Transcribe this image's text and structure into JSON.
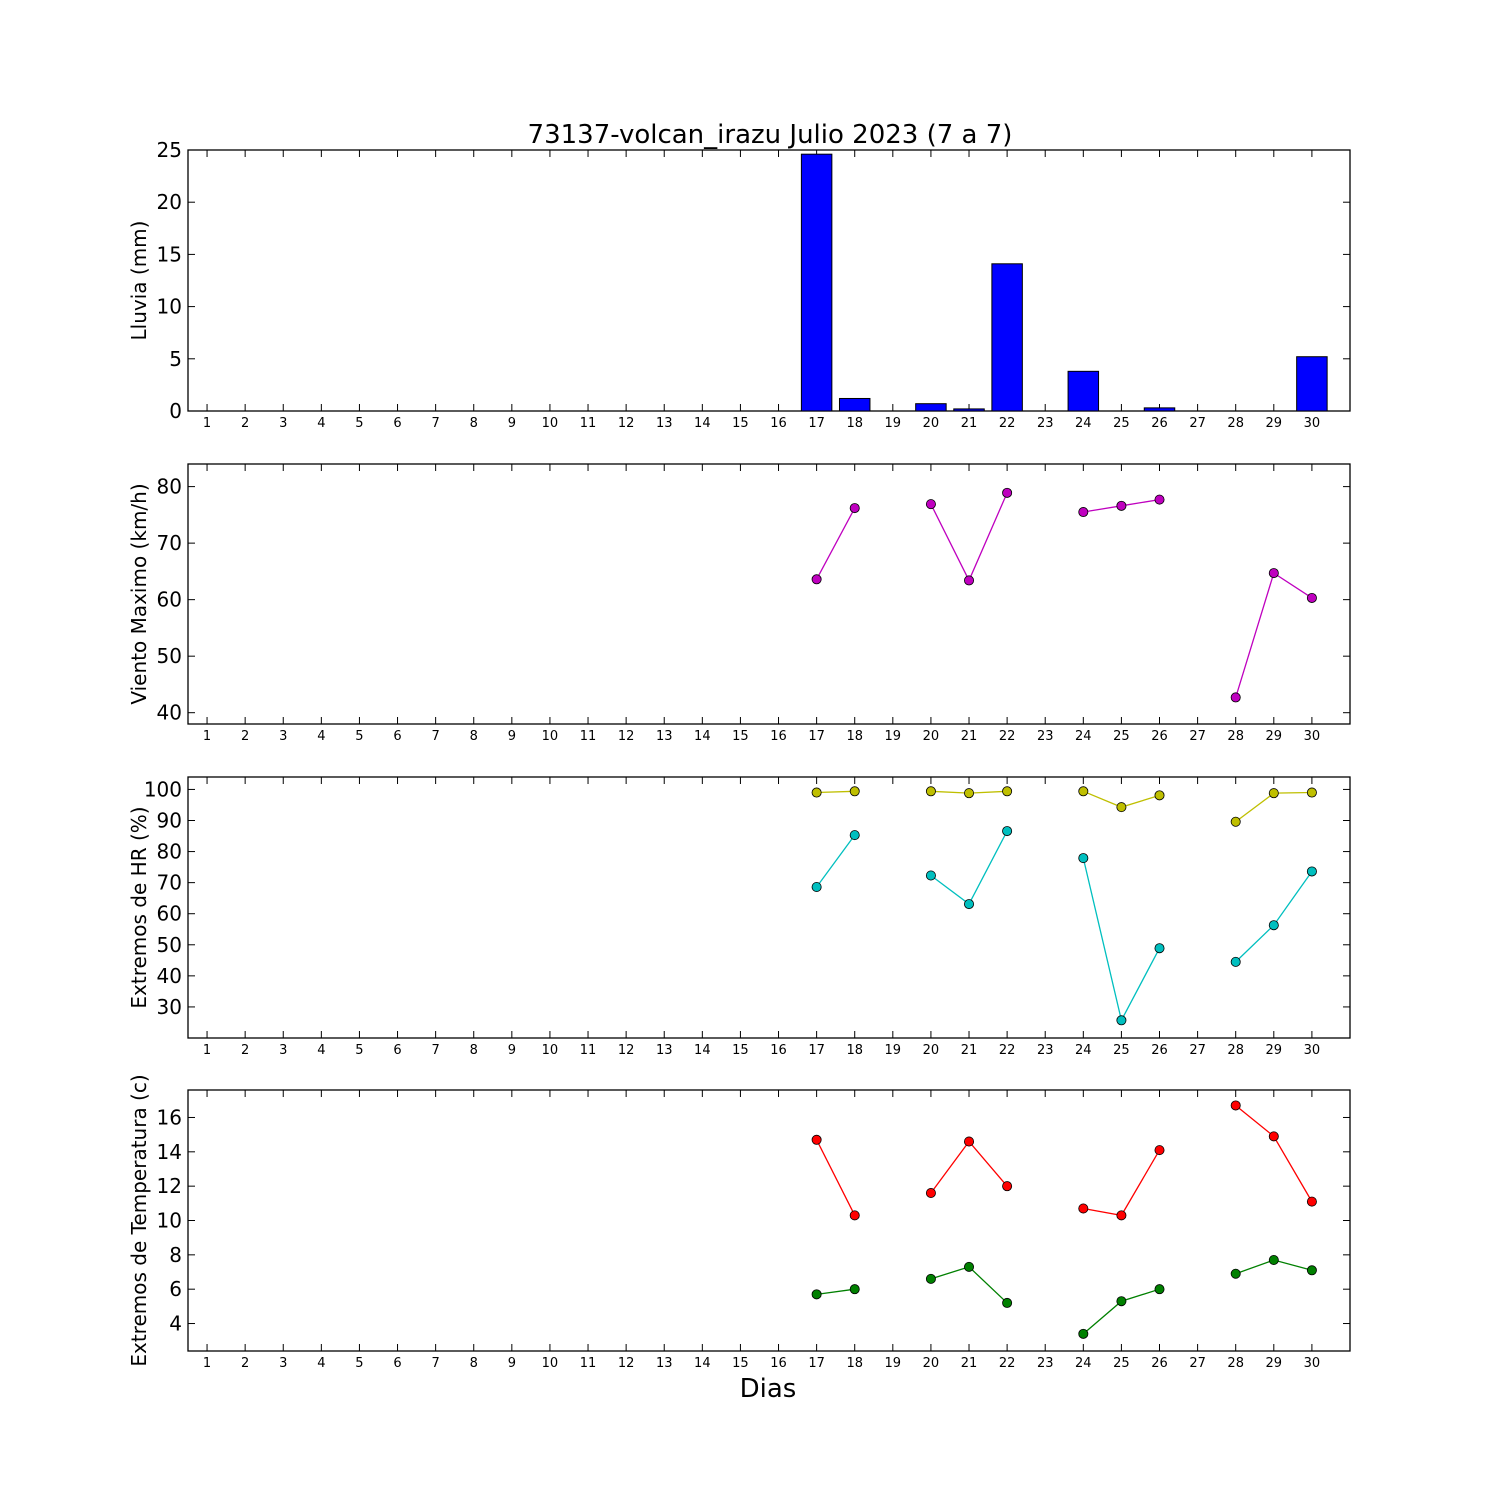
{
  "figure": {
    "title": "73137-volcan_irazu Julio 2023  (7 a 7)",
    "xlabel": "Dias"
  },
  "chart_data": [
    {
      "type": "bar",
      "ylabel": "Lluvia (mm)",
      "ylim": [
        0,
        25
      ],
      "yticks": [
        0,
        5,
        10,
        15,
        20,
        25
      ],
      "categories": [
        "1",
        "2",
        "3",
        "4",
        "5",
        "6",
        "7",
        "8",
        "9",
        "10",
        "11",
        "12",
        "13",
        "14",
        "15",
        "16",
        "17",
        "18",
        "19",
        "20",
        "21",
        "22",
        "23",
        "24",
        "25",
        "26",
        "27",
        "28",
        "29",
        "30"
      ],
      "series": [
        {
          "color": "#0000ff",
          "values": [
            null,
            null,
            null,
            null,
            null,
            null,
            null,
            null,
            null,
            null,
            null,
            null,
            null,
            null,
            null,
            null,
            24.6,
            1.2,
            0,
            0.7,
            0.2,
            14.1,
            0,
            3.8,
            0,
            0.3,
            0,
            0,
            0,
            5.2
          ]
        }
      ],
      "grid": false
    },
    {
      "type": "line",
      "ylabel": "Viento Maximo (km/h)",
      "ylim": [
        38,
        84
      ],
      "yticks": [
        40,
        50,
        60,
        70,
        80
      ],
      "categories": [
        "1",
        "2",
        "3",
        "4",
        "5",
        "6",
        "7",
        "8",
        "9",
        "10",
        "11",
        "12",
        "13",
        "14",
        "15",
        "16",
        "17",
        "18",
        "19",
        "20",
        "21",
        "22",
        "23",
        "24",
        "25",
        "26",
        "27",
        "28",
        "29",
        "30"
      ],
      "series": [
        {
          "color": "#bf00bf",
          "values": [
            null,
            null,
            null,
            null,
            null,
            null,
            null,
            null,
            null,
            null,
            null,
            null,
            null,
            null,
            null,
            null,
            63.6,
            76.2,
            null,
            76.9,
            63.4,
            78.9,
            null,
            75.5,
            76.6,
            77.7,
            null,
            42.7,
            64.7,
            60.3
          ]
        }
      ],
      "grid": false
    },
    {
      "type": "line",
      "ylabel": "Extremos de HR (%)",
      "ylim": [
        20,
        104
      ],
      "yticks": [
        30,
        40,
        50,
        60,
        70,
        80,
        90,
        100
      ],
      "categories": [
        "1",
        "2",
        "3",
        "4",
        "5",
        "6",
        "7",
        "8",
        "9",
        "10",
        "11",
        "12",
        "13",
        "14",
        "15",
        "16",
        "17",
        "18",
        "19",
        "20",
        "21",
        "22",
        "23",
        "24",
        "25",
        "26",
        "27",
        "28",
        "29",
        "30"
      ],
      "series": [
        {
          "color": "#bfbf00",
          "values": [
            null,
            null,
            null,
            null,
            null,
            null,
            null,
            null,
            null,
            null,
            null,
            null,
            null,
            null,
            null,
            null,
            99,
            99.4,
            null,
            99.4,
            98.8,
            99.4,
            null,
            99.4,
            94.3,
            98.1,
            null,
            89.6,
            98.8,
            99
          ]
        },
        {
          "color": "#00bfbf",
          "values": [
            null,
            null,
            null,
            null,
            null,
            null,
            null,
            null,
            null,
            null,
            null,
            null,
            null,
            null,
            null,
            null,
            68.6,
            85.3,
            null,
            72.3,
            63.1,
            86.6,
            null,
            77.9,
            25.7,
            48.9,
            null,
            44.5,
            56.3,
            73.6
          ]
        }
      ],
      "grid": false
    },
    {
      "type": "line",
      "ylabel": "Extremos de Temperatura (c)",
      "ylim": [
        2.4,
        17.6
      ],
      "yticks": [
        4,
        6,
        8,
        10,
        12,
        14,
        16
      ],
      "categories": [
        "1",
        "2",
        "3",
        "4",
        "5",
        "6",
        "7",
        "8",
        "9",
        "10",
        "11",
        "12",
        "13",
        "14",
        "15",
        "16",
        "17",
        "18",
        "19",
        "20",
        "21",
        "22",
        "23",
        "24",
        "25",
        "26",
        "27",
        "28",
        "29",
        "30"
      ],
      "series": [
        {
          "color": "#ff0000",
          "values": [
            null,
            null,
            null,
            null,
            null,
            null,
            null,
            null,
            null,
            null,
            null,
            null,
            null,
            null,
            null,
            null,
            14.7,
            10.3,
            null,
            11.6,
            14.6,
            12,
            null,
            10.7,
            10.3,
            14.1,
            null,
            16.7,
            14.9,
            11.1
          ]
        },
        {
          "color": "#008000",
          "values": [
            null,
            null,
            null,
            null,
            null,
            null,
            null,
            null,
            null,
            null,
            null,
            null,
            null,
            null,
            null,
            null,
            5.7,
            6,
            null,
            6.6,
            7.3,
            5.2,
            null,
            3.4,
            5.3,
            6,
            null,
            6.9,
            7.7,
            7.1
          ]
        }
      ],
      "grid": false
    }
  ]
}
